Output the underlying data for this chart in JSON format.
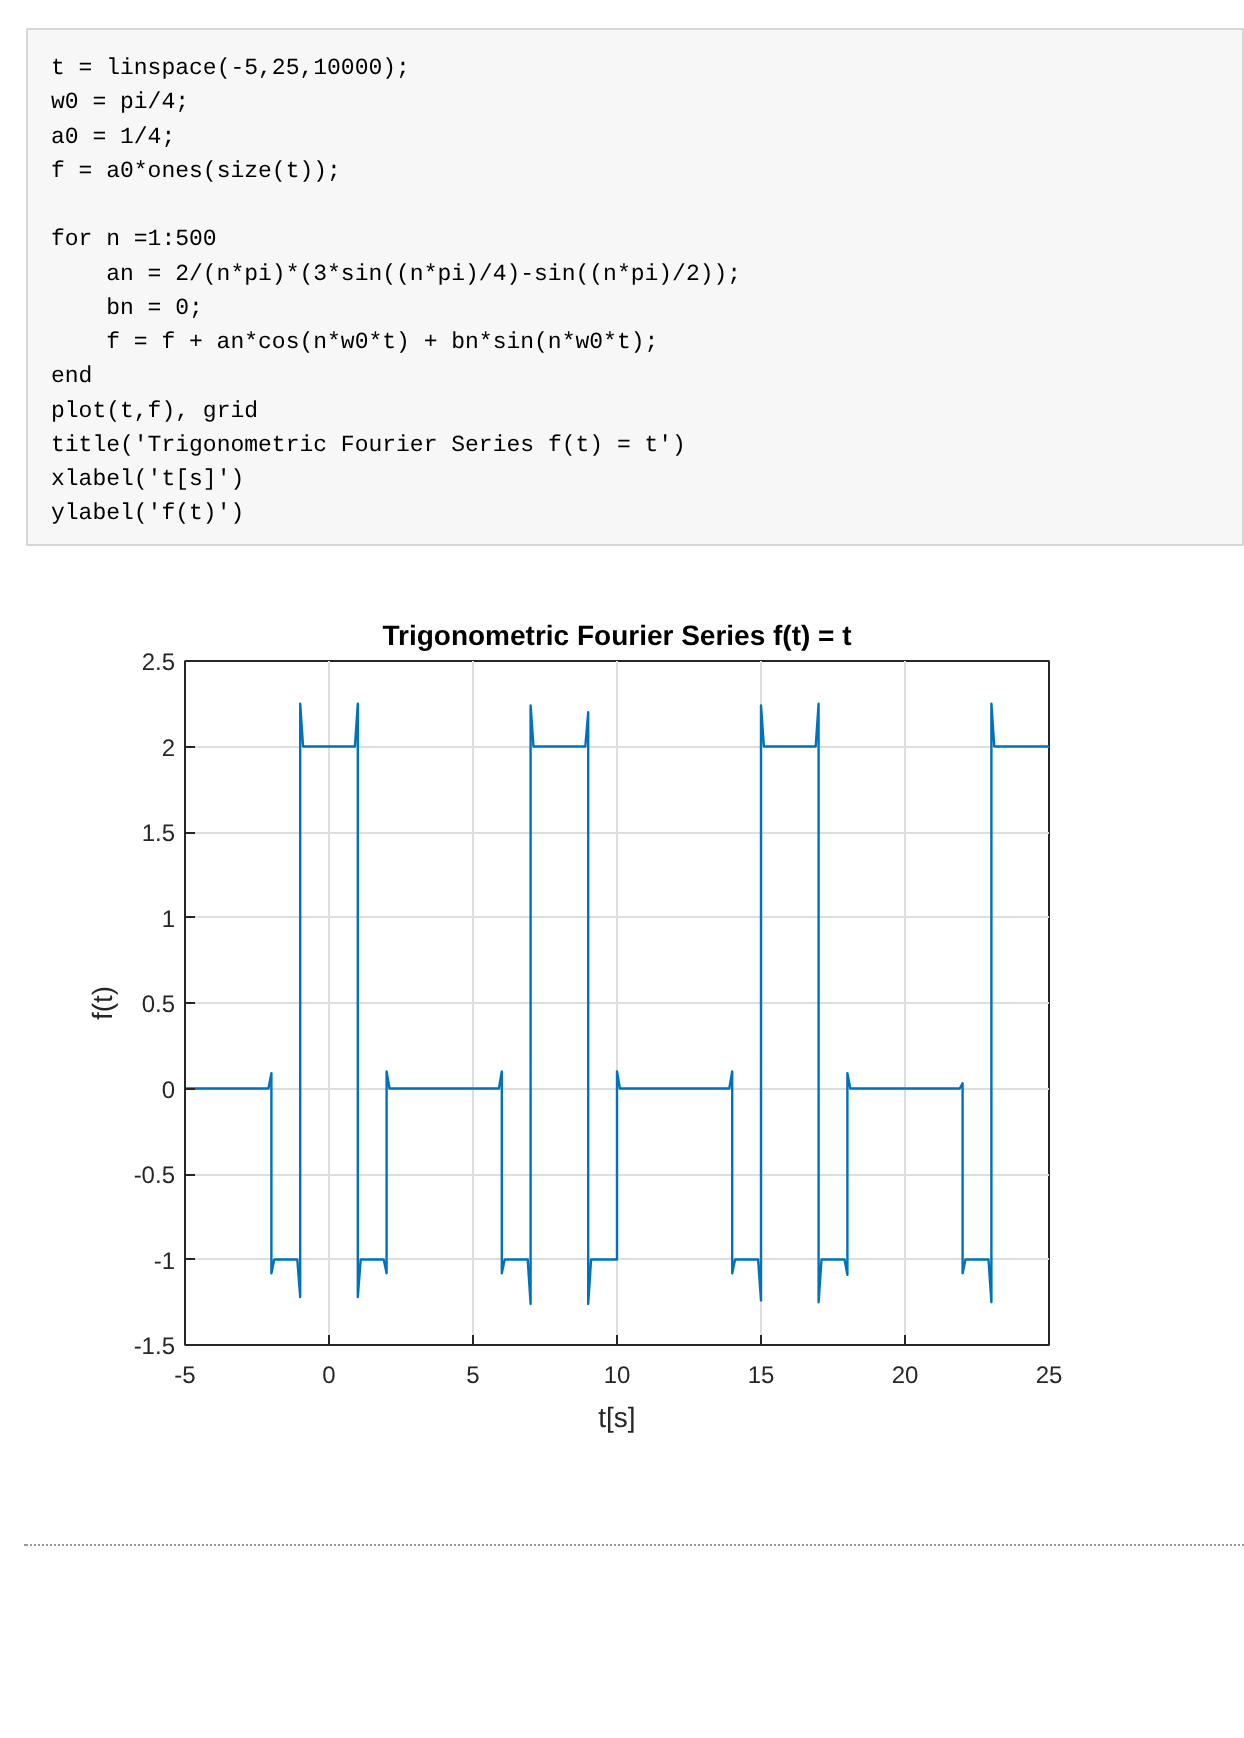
{
  "chart_data": {
    "type": "line",
    "title": "Trigonometric Fourier Series f(t) = t",
    "xlabel": "t[s]",
    "ylabel": "f(t)",
    "annotations": [
      "t = linspace(-5,25,10000);\nw0 = pi/4;\na0 = 1/4;\nf = a0*ones(size(t));\n\nfor n =1:500\n    an = 2/(n*pi)*(3*sin((n*pi)/4)-sin((n*pi)/2));\n    bn = 0;\n    f = f + an*cos(n*w0*t) + bn*sin(n*w0*t);\nend\nplot(t,f), grid\ntitle('Trigonometric Fourier Series f(t) = t')\nxlabel('t[s]')\nylabel('f(t)')"
    ],
    "x": [
      -5,
      -2.1,
      -2,
      -2,
      -1.9,
      -1.1,
      -1,
      -1,
      -0.9,
      0.9,
      1,
      1,
      1.1,
      1.9,
      2,
      2,
      2.1,
      5.9,
      6,
      6,
      6.1,
      6.9,
      7,
      7,
      7.1,
      8.9,
      9,
      9,
      9.1,
      9.9,
      10,
      10,
      10.1,
      13.9,
      14,
      14,
      14.1,
      14.9,
      15,
      15,
      15.1,
      16.9,
      17,
      17,
      17.1,
      17.9,
      18,
      18,
      18.1,
      21.9,
      22,
      22,
      22.1,
      22.9,
      23,
      23,
      23.1,
      25
    ],
    "series": [
      {
        "color": "#0072bd",
        "values": [
          0,
          0,
          0.09,
          -1.08,
          -1,
          -1,
          -1.22,
          2.25,
          2,
          2,
          2.25,
          -1.22,
          -1,
          -1,
          -1.08,
          0.1,
          0,
          0,
          0.1,
          -1.08,
          -1,
          -1,
          -1.26,
          2.24,
          2,
          2,
          2.2,
          -1.26,
          -1,
          -1,
          -1,
          0.1,
          0,
          0,
          0.1,
          -1.08,
          -1,
          -1,
          -1.24,
          2.24,
          2,
          2,
          2.25,
          -1.25,
          -1,
          -1,
          -1.09,
          0.09,
          0,
          0,
          0.03,
          -1.08,
          -1,
          -1,
          -1.25,
          2.25,
          2,
          2
        ]
      }
    ],
    "xlim": [
      -5,
      25
    ],
    "ylim": [
      -1.5,
      2.5
    ],
    "xticks": [
      -5,
      0,
      5,
      10,
      15,
      20,
      25
    ],
    "yticks": [
      -1.5,
      -1,
      -0.5,
      0,
      0.5,
      1,
      1.5,
      2,
      2.5
    ],
    "grid": true
  }
}
